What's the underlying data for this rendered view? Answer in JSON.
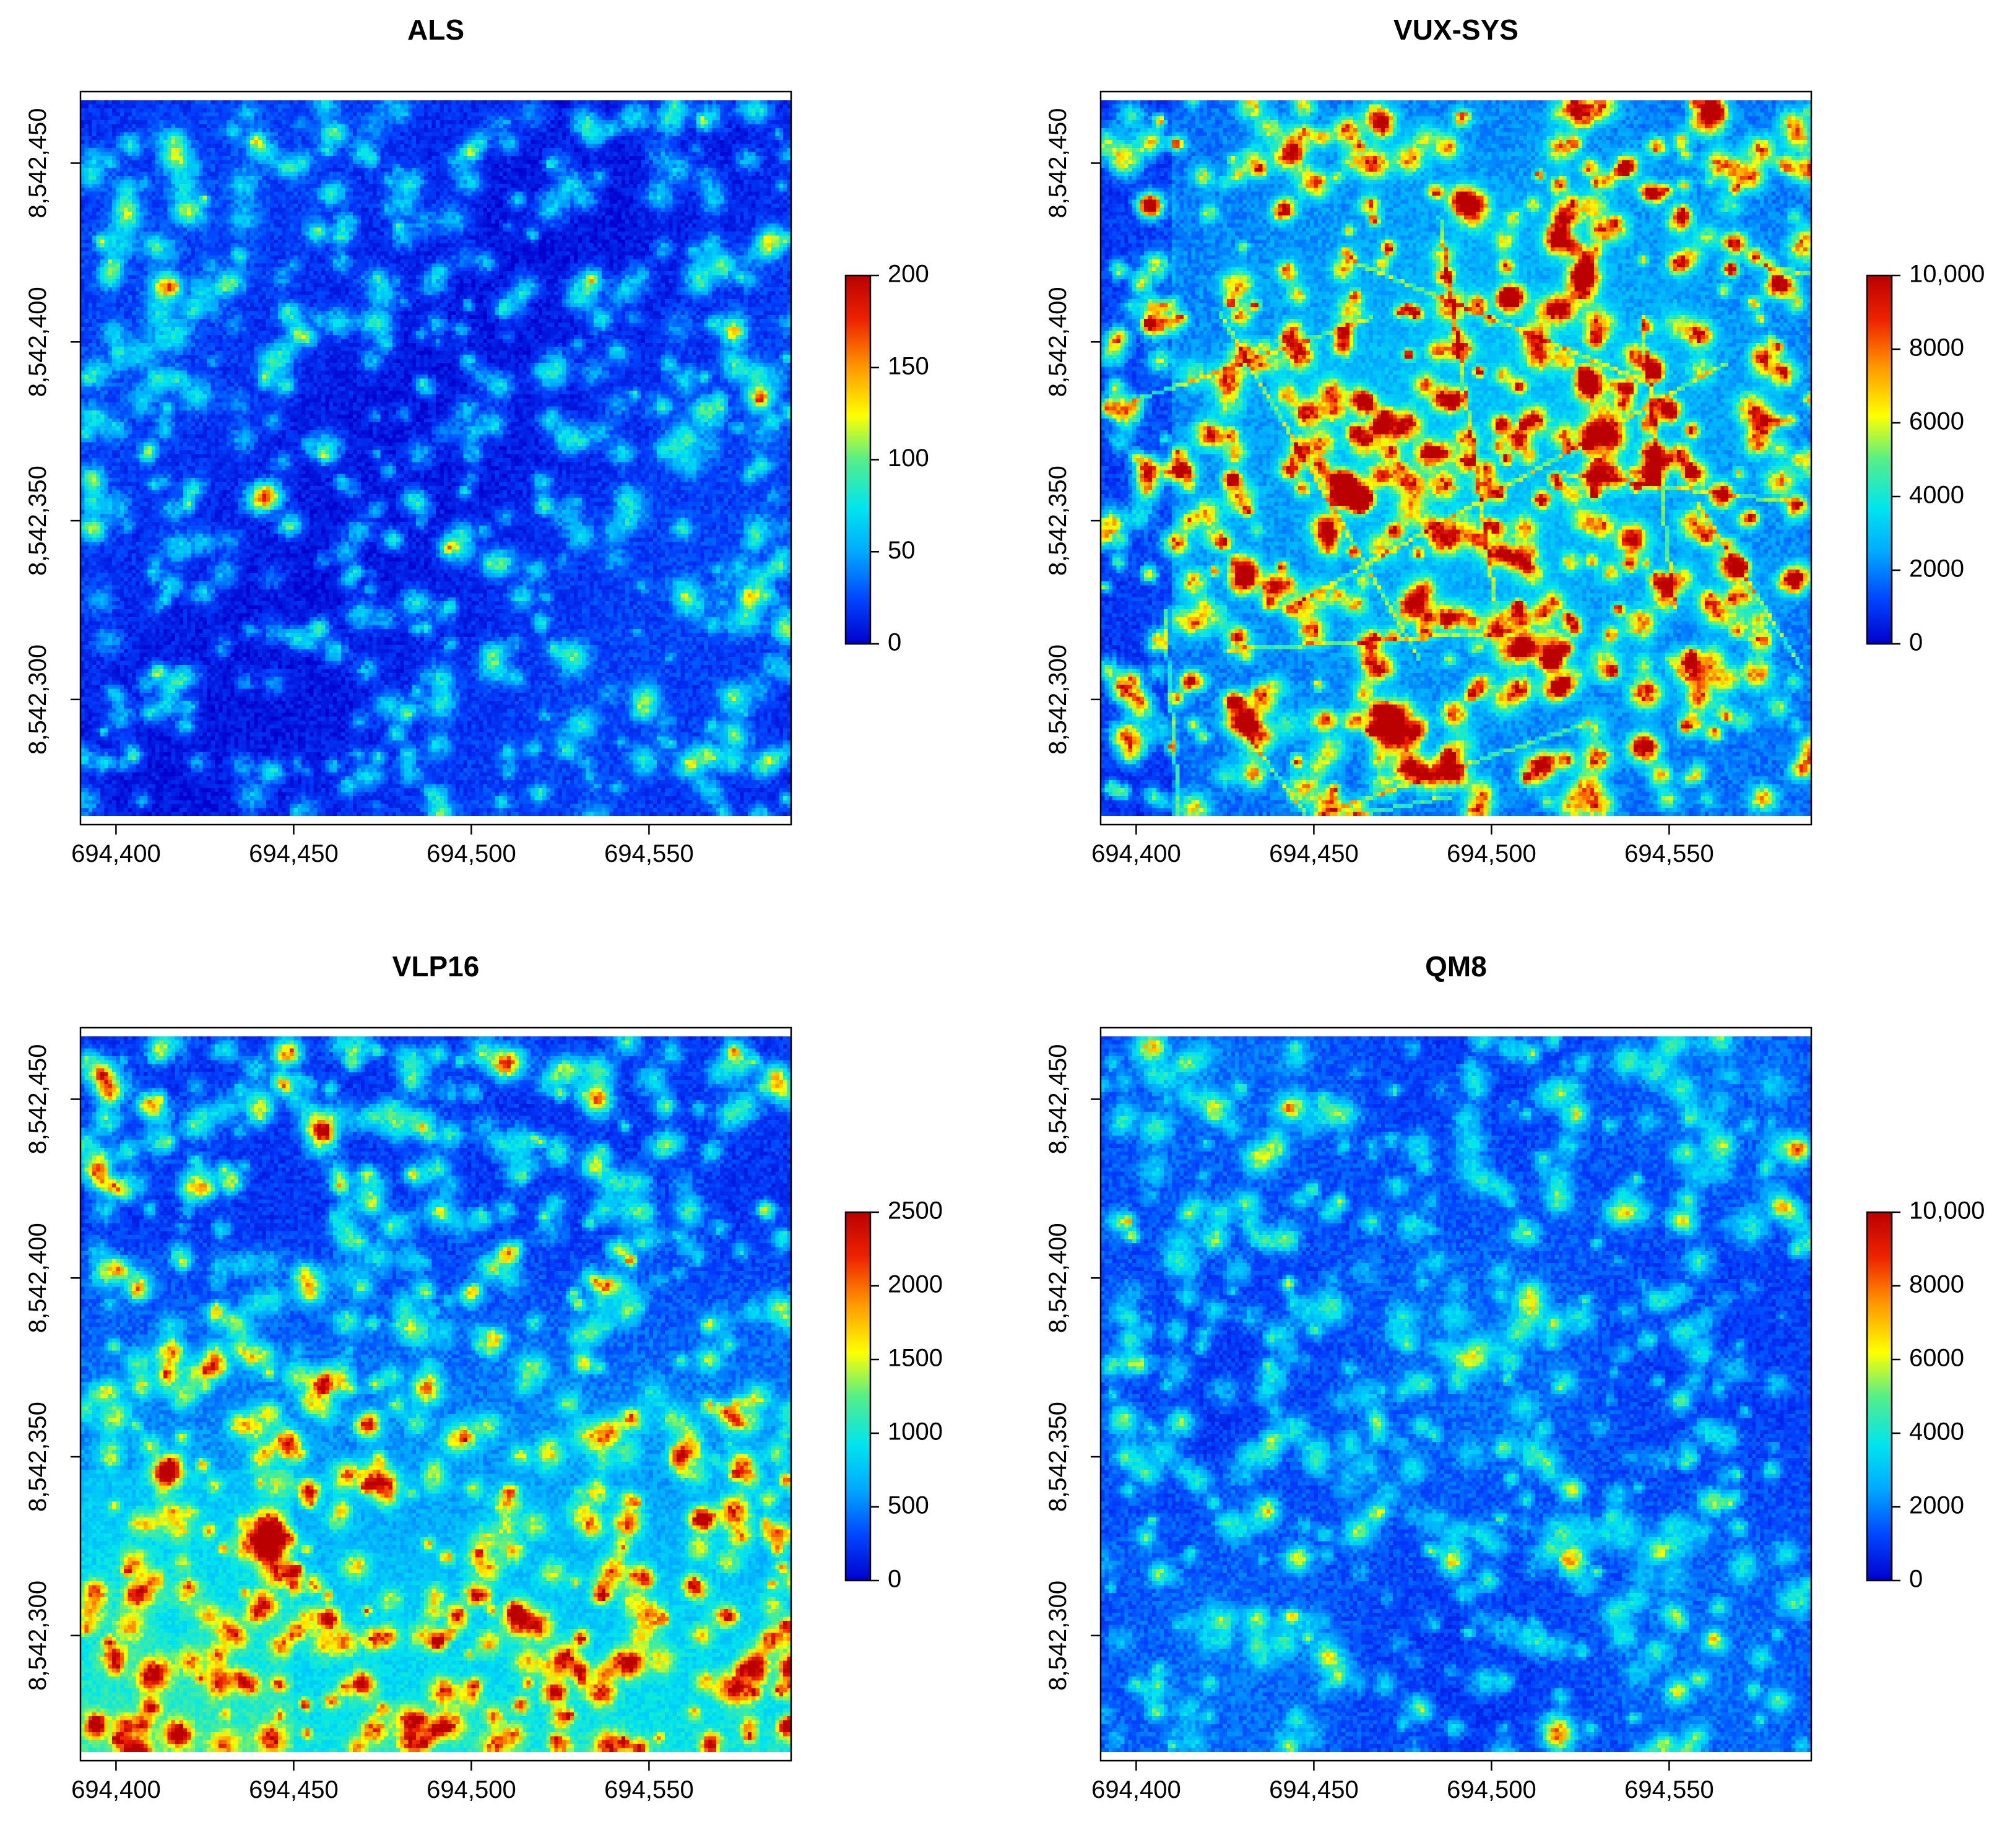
{
  "figure": {
    "layout": "2x2",
    "colormap": [
      "#0000cc",
      "#0044ff",
      "#00aaff",
      "#00e5ee",
      "#55ee88",
      "#ffff00",
      "#ff9900",
      "#ee2200",
      "#bb0000"
    ]
  },
  "chart_data": [
    {
      "type": "heatmap",
      "title": "ALS",
      "x_ticks": [
        694400,
        694450,
        694500,
        694550
      ],
      "x_tick_labels": [
        "694,400",
        "694,450",
        "694,500",
        "694,550"
      ],
      "y_ticks": [
        8542450,
        8542400,
        8542350,
        8542300
      ],
      "y_tick_labels": [
        "8,542,450",
        "8,542,400",
        "8,542,350",
        "8,542,300"
      ],
      "xlim": [
        694390,
        694590
      ],
      "ylim": [
        8542265,
        8542470
      ],
      "colorbar": {
        "min": 0,
        "max": 200,
        "ticks": [
          0,
          50,
          100,
          150,
          200
        ],
        "tick_labels": [
          "0",
          "50",
          "100",
          "150",
          "200"
        ]
      },
      "pattern": "crowns",
      "seed": 11
    },
    {
      "type": "heatmap",
      "title": "VUX-SYS",
      "x_ticks": [
        694400,
        694450,
        694500,
        694550
      ],
      "x_tick_labels": [
        "694,400",
        "694,450",
        "694,500",
        "694,550"
      ],
      "y_ticks": [
        8542450,
        8542400,
        8542350,
        8542300
      ],
      "y_tick_labels": [
        "8,542,450",
        "8,542,400",
        "8,542,350",
        "8,542,300"
      ],
      "xlim": [
        694390,
        694590
      ],
      "ylim": [
        8542265,
        8542470
      ],
      "colorbar": {
        "min": 0,
        "max": 10000,
        "ticks": [
          0,
          2000,
          4000,
          6000,
          8000,
          10000
        ],
        "tick_labels": [
          "0",
          "2000",
          "4000",
          "6000",
          "8000",
          "10,000"
        ]
      },
      "pattern": "dense-center",
      "seed": 23
    },
    {
      "type": "heatmap",
      "title": "VLP16",
      "x_ticks": [
        694400,
        694450,
        694500,
        694550
      ],
      "x_tick_labels": [
        "694,400",
        "694,450",
        "694,500",
        "694,550"
      ],
      "y_ticks": [
        8542450,
        8542400,
        8542350,
        8542300
      ],
      "y_tick_labels": [
        "8,542,450",
        "8,542,400",
        "8,542,350",
        "8,542,300"
      ],
      "xlim": [
        694390,
        694590
      ],
      "ylim": [
        8542265,
        8542470
      ],
      "colorbar": {
        "min": 0,
        "max": 2500,
        "ticks": [
          0,
          500,
          1000,
          1500,
          2000,
          2500
        ],
        "tick_labels": [
          "0",
          "500",
          "1000",
          "1500",
          "2000",
          "2500"
        ]
      },
      "pattern": "gradient-bottom",
      "seed": 37
    },
    {
      "type": "heatmap",
      "title": "QM8",
      "x_ticks": [
        694400,
        694450,
        694500,
        694550
      ],
      "x_tick_labels": [
        "694,400",
        "694,450",
        "694,500",
        "694,550"
      ],
      "y_ticks": [
        8542450,
        8542400,
        8542350,
        8542300
      ],
      "y_tick_labels": [
        "8,542,450",
        "8,542,400",
        "8,542,350",
        "8,542,300"
      ],
      "xlim": [
        694390,
        694590
      ],
      "ylim": [
        8542265,
        8542470
      ],
      "colorbar": {
        "min": 0,
        "max": 10000,
        "ticks": [
          0,
          2000,
          4000,
          6000,
          8000,
          10000
        ],
        "tick_labels": [
          "0",
          "2000",
          "4000",
          "6000",
          "8000",
          "10,000"
        ]
      },
      "pattern": "crowns-mid",
      "seed": 53
    }
  ]
}
